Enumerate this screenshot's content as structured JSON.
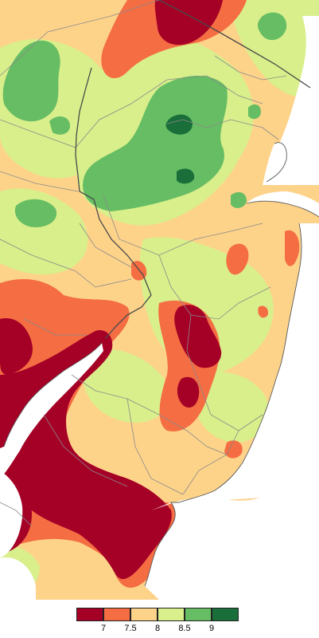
{
  "map": {
    "colors": {
      "water": "#ffffff",
      "outside": "#ffffff",
      "county_line": "#8a8a8a",
      "state_line": "#4a4a4a"
    }
  },
  "legend": {
    "bins": [
      {
        "color": "#a50026"
      },
      {
        "color": "#f46d43"
      },
      {
        "color": "#fdd38a"
      },
      {
        "color": "#d9ef8b"
      },
      {
        "color": "#66bd63"
      },
      {
        "color": "#1a6e3a"
      }
    ],
    "ticks": [
      "7",
      "7.5",
      "8",
      "8.5",
      "9"
    ]
  }
}
